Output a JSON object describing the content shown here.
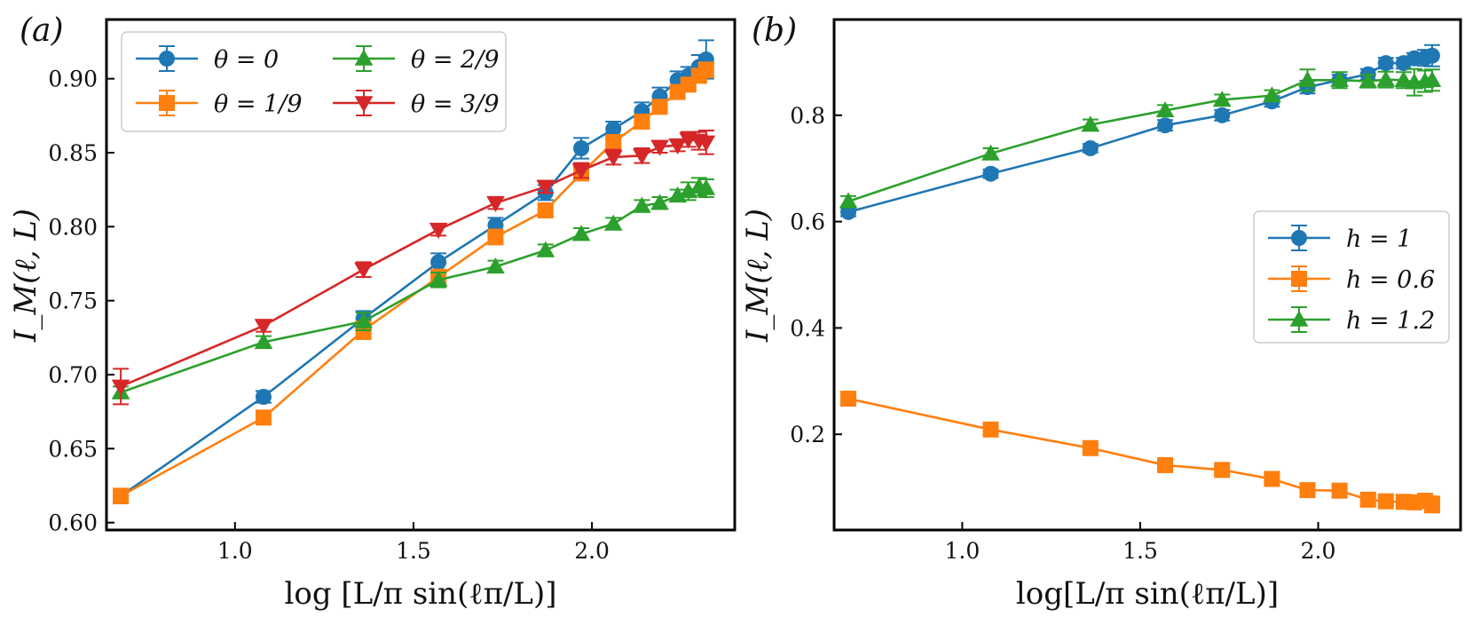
{
  "chart_data": [
    {
      "type": "line",
      "panel_label": "(a)",
      "ylabel": "I_M(ℓ, L)",
      "xlabel": "log [L/π sin(ℓπ/L)]",
      "xlim": [
        0.64,
        2.4
      ],
      "ylim": [
        0.595,
        0.94
      ],
      "grid": false,
      "legend_position": "top-left",
      "xticks": [
        1.0,
        1.5,
        2.0
      ],
      "xtick_labels": [
        "1.0",
        "1.5",
        "2.0"
      ],
      "yticks": [
        0.6,
        0.65,
        0.7,
        0.75,
        0.8,
        0.85,
        0.9
      ],
      "ytick_labels": [
        "0.60",
        "0.65",
        "0.70",
        "0.75",
        "0.80",
        "0.85",
        "0.90"
      ],
      "x": [
        0.68,
        1.08,
        1.36,
        1.57,
        1.73,
        1.87,
        1.97,
        2.06,
        2.14,
        2.19,
        2.24,
        2.27,
        2.3,
        2.32
      ],
      "series": [
        {
          "name": "θ = 0",
          "color": "#1f77b4",
          "marker": "circle",
          "values": [
            0.618,
            0.685,
            0.738,
            0.776,
            0.801,
            0.823,
            0.853,
            0.866,
            0.878,
            0.888,
            0.899,
            0.902,
            0.908,
            0.913
          ],
          "errors": [
            0.004,
            0.004,
            0.005,
            0.006,
            0.005,
            0.005,
            0.007,
            0.005,
            0.006,
            0.006,
            0.006,
            0.006,
            0.008,
            0.013
          ]
        },
        {
          "name": "θ = 1/9",
          "color": "#ff7f0e",
          "marker": "square",
          "values": [
            0.618,
            0.671,
            0.73,
            0.766,
            0.793,
            0.811,
            0.836,
            0.857,
            0.871,
            0.881,
            0.891,
            0.896,
            0.902,
            0.906
          ],
          "errors": [
            0.005,
            0.004,
            0.006,
            0.005,
            0.005,
            0.004,
            0.004,
            0.005,
            0.004,
            0.004,
            0.004,
            0.004,
            0.004,
            0.005
          ]
        },
        {
          "name": "θ = 2/9",
          "color": "#2ca02c",
          "marker": "triangle-up",
          "values": [
            0.688,
            0.722,
            0.736,
            0.764,
            0.773,
            0.784,
            0.795,
            0.802,
            0.814,
            0.816,
            0.821,
            0.824,
            0.827,
            0.826
          ],
          "errors": [
            0.004,
            0.004,
            0.006,
            0.005,
            0.004,
            0.004,
            0.004,
            0.004,
            0.004,
            0.004,
            0.004,
            0.006,
            0.006,
            0.006
          ]
        },
        {
          "name": "θ = 3/9",
          "color": "#d62728",
          "marker": "triangle-down",
          "values": [
            0.692,
            0.733,
            0.771,
            0.798,
            0.816,
            0.827,
            0.838,
            0.847,
            0.848,
            0.854,
            0.855,
            0.859,
            0.858,
            0.857
          ],
          "errors": [
            0.012,
            0.004,
            0.005,
            0.004,
            0.004,
            0.004,
            0.005,
            0.005,
            0.005,
            0.004,
            0.004,
            0.005,
            0.006,
            0.008
          ]
        }
      ]
    },
    {
      "type": "line",
      "panel_label": "(b)",
      "ylabel": "I_M(ℓ, L)",
      "xlabel": "log[L/π sin(ℓπ/L)]",
      "xlim": [
        0.64,
        2.4
      ],
      "ylim": [
        0.02,
        0.98
      ],
      "grid": false,
      "legend_position": "center-right",
      "xticks": [
        1.0,
        1.5,
        2.0
      ],
      "xtick_labels": [
        "1.0",
        "1.5",
        "2.0"
      ],
      "yticks": [
        0.2,
        0.4,
        0.6,
        0.8
      ],
      "ytick_labels": [
        "0.2",
        "0.4",
        "0.6",
        "0.8"
      ],
      "x": [
        0.68,
        1.08,
        1.36,
        1.57,
        1.73,
        1.87,
        1.97,
        2.06,
        2.14,
        2.19,
        2.24,
        2.27,
        2.3,
        2.32
      ],
      "series": [
        {
          "name": "h = 1",
          "color": "#1f77b4",
          "marker": "circle",
          "values": [
            0.618,
            0.69,
            0.738,
            0.781,
            0.8,
            0.826,
            0.853,
            0.866,
            0.877,
            0.898,
            0.898,
            0.907,
            0.908,
            0.912
          ],
          "errors": [
            0.008,
            0.008,
            0.008,
            0.01,
            0.01,
            0.01,
            0.012,
            0.01,
            0.01,
            0.01,
            0.01,
            0.01,
            0.015,
            0.02
          ]
        },
        {
          "name": "h = 0.6",
          "color": "#ff7f0e",
          "marker": "square",
          "values": [
            0.267,
            0.209,
            0.174,
            0.142,
            0.133,
            0.116,
            0.095,
            0.094,
            0.077,
            0.074,
            0.073,
            0.072,
            0.075,
            0.068
          ],
          "errors": [
            0.006,
            0.006,
            0.006,
            0.006,
            0.006,
            0.006,
            0.006,
            0.006,
            0.008,
            0.008,
            0.008,
            0.008,
            0.012,
            0.015
          ]
        },
        {
          "name": "h = 1.2",
          "color": "#2ca02c",
          "marker": "triangle-up",
          "values": [
            0.638,
            0.728,
            0.782,
            0.809,
            0.829,
            0.837,
            0.866,
            0.866,
            0.864,
            0.867,
            0.866,
            0.862,
            0.864,
            0.866
          ],
          "errors": [
            0.01,
            0.01,
            0.01,
            0.01,
            0.01,
            0.01,
            0.02,
            0.015,
            0.012,
            0.015,
            0.015,
            0.025,
            0.02,
            0.02
          ]
        }
      ]
    }
  ]
}
